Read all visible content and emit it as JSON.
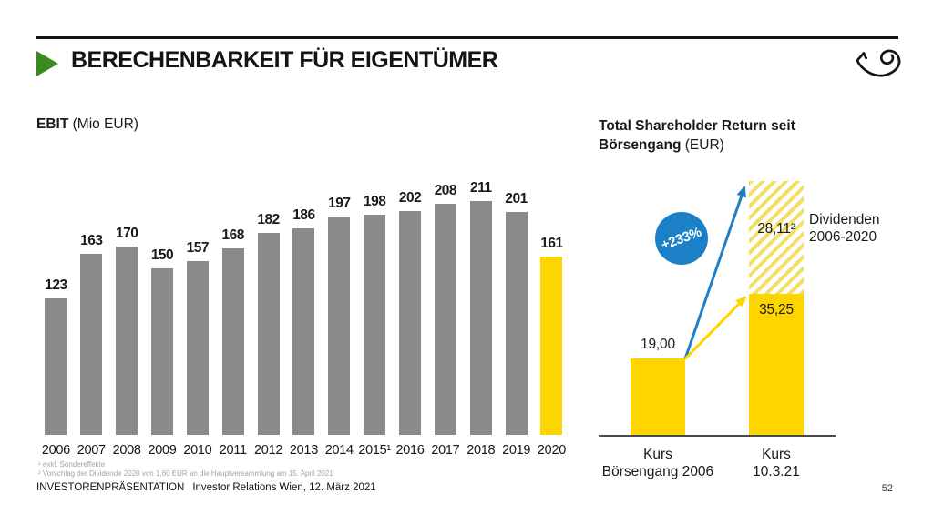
{
  "slide": {
    "title": "BERECHENBARKEIT FÜR EIGENTÜMER",
    "footer_part1": "INVESTORENPRÄSENTATION",
    "footer_part2": "Investor Relations Wien, 12. März 2021",
    "page_number": "52"
  },
  "colors": {
    "yellow": "#FFD500",
    "gray": "#8A8A8A",
    "blue": "#1B80C6",
    "green": "#3A8A22"
  },
  "ebit": {
    "title_bold": "EBIT",
    "title_rest": " (Mio EUR)"
  },
  "tsr": {
    "title_bold": "Total Shareholder Return seit Börsengang",
    "title_line1": "Total Shareholder Return seit",
    "title_line2_bold": "Börsengang",
    "title_line2_rest": " (EUR)",
    "badge_label": "+233%",
    "price_2006_label": "19,00",
    "price_now_label": "35,25",
    "dividends_value_label": "28,11²",
    "dividends_note_line1": "Dividenden",
    "dividends_note_line2": "2006-2020",
    "xlabel1_line1": "Kurs",
    "xlabel1_line2": "Börsengang 2006",
    "xlabel2_line1": "Kurs",
    "xlabel2_line2": "10.3.21"
  },
  "footnotes": {
    "line1": "¹ exkl. Sondereffekte",
    "line2": "² Vorschlag der Dividende 2020 von 1,60 EUR an die Hauptversammlung am 15. April 2021"
  },
  "chart_data": [
    {
      "type": "bar",
      "title": "EBIT (Mio EUR)",
      "categories": [
        "2006",
        "2007",
        "2008",
        "2009",
        "2010",
        "2011",
        "2012",
        "2013",
        "2014",
        "2015¹",
        "2016",
        "2017",
        "2018",
        "2019",
        "2020"
      ],
      "values": [
        123,
        163,
        170,
        150,
        157,
        168,
        182,
        186,
        197,
        198,
        202,
        208,
        211,
        201,
        161
      ],
      "highlight_index": 14,
      "bar_color": "#8A8A8A",
      "highlight_color": "#FFD500",
      "xlabel": "",
      "ylabel": "EBIT (Mio EUR)",
      "grid": false,
      "data_labels": true
    },
    {
      "type": "bar",
      "title": "Total Shareholder Return seit Börsengang (EUR)",
      "categories": [
        "Kurs Börsengang 2006",
        "Kurs 10.3.21"
      ],
      "series": [
        {
          "name": "Kurs",
          "values": [
            19.0,
            35.25
          ]
        },
        {
          "name": "Dividenden 2006-2020",
          "values": [
            0,
            28.11
          ]
        }
      ],
      "stacked": true,
      "annotations": [
        "+233%"
      ],
      "grid": false,
      "data_labels": true
    }
  ]
}
